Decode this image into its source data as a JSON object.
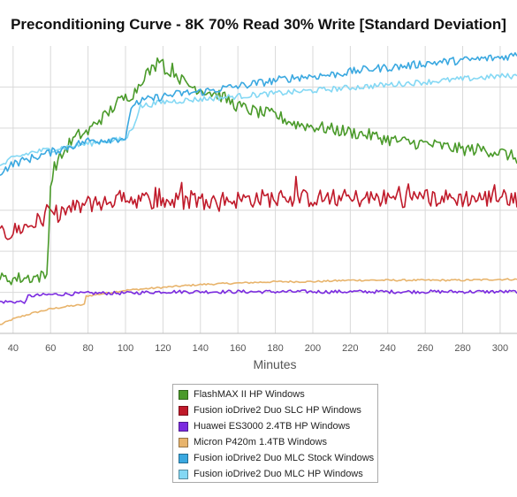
{
  "chart_data": {
    "type": "line",
    "title": "Preconditioning Curve - 8K 70% Read 30% Write [Standard Deviation]",
    "xlabel": "Minutes",
    "ylabel": "",
    "x_ticks": [
      40,
      60,
      80,
      100,
      120,
      140,
      160,
      180,
      200,
      220,
      240,
      260,
      280,
      300
    ],
    "xlim": [
      33,
      309
    ],
    "ylim": [
      0,
      100
    ],
    "grid": true,
    "legend_position": "bottom-center",
    "series": [
      {
        "name": "FlashMAX II HP Windows",
        "color": "#4a9a2a",
        "points": [
          [
            33,
            19
          ],
          [
            40,
            19
          ],
          [
            50,
            19.5
          ],
          [
            58,
            20
          ],
          [
            60,
            51
          ],
          [
            62,
            58
          ],
          [
            65,
            61
          ],
          [
            70,
            66
          ],
          [
            75,
            69
          ],
          [
            80,
            70
          ],
          [
            85,
            74
          ],
          [
            90,
            76
          ],
          [
            95,
            80
          ],
          [
            100,
            82
          ],
          [
            105,
            84
          ],
          [
            110,
            90
          ],
          [
            115,
            92
          ],
          [
            119,
            97
          ],
          [
            122,
            90
          ],
          [
            125,
            92
          ],
          [
            130,
            88
          ],
          [
            135,
            86
          ],
          [
            140,
            85
          ],
          [
            150,
            83
          ],
          [
            160,
            79
          ],
          [
            170,
            77
          ],
          [
            180,
            76
          ],
          [
            190,
            73
          ],
          [
            200,
            72
          ],
          [
            210,
            71
          ],
          [
            220,
            70
          ],
          [
            230,
            69
          ],
          [
            240,
            67.5
          ],
          [
            250,
            66.5
          ],
          [
            260,
            66
          ],
          [
            270,
            65
          ],
          [
            280,
            64
          ],
          [
            290,
            64
          ],
          [
            300,
            63
          ],
          [
            309,
            61
          ]
        ]
      },
      {
        "name": "Fusion ioDrive2 Duo SLC HP Windows",
        "color": "#c01a2a",
        "points": [
          [
            33,
            34
          ],
          [
            40,
            35.5
          ],
          [
            50,
            38
          ],
          [
            60,
            41
          ],
          [
            70,
            43
          ],
          [
            80,
            45
          ],
          [
            90,
            46
          ],
          [
            100,
            47
          ],
          [
            110,
            46.5
          ],
          [
            120,
            46
          ],
          [
            130,
            46
          ],
          [
            140,
            46
          ],
          [
            150,
            46.5
          ],
          [
            160,
            46.5
          ],
          [
            170,
            47
          ],
          [
            180,
            47
          ],
          [
            190,
            47
          ],
          [
            200,
            47
          ],
          [
            210,
            47
          ],
          [
            220,
            47
          ],
          [
            230,
            47
          ],
          [
            240,
            47
          ],
          [
            250,
            47
          ],
          [
            260,
            47
          ],
          [
            270,
            47
          ],
          [
            280,
            47
          ],
          [
            290,
            47
          ],
          [
            300,
            47
          ],
          [
            309,
            47
          ]
        ]
      },
      {
        "name": "Huawei ES3000 2.4TB HP Windows",
        "color": "#7b2be0",
        "points": [
          [
            33,
            11
          ],
          [
            40,
            11
          ],
          [
            47,
            11
          ],
          [
            48,
            13
          ],
          [
            60,
            13.5
          ],
          [
            80,
            14
          ],
          [
            100,
            14
          ],
          [
            120,
            14.5
          ],
          [
            140,
            14.5
          ],
          [
            160,
            14.5
          ],
          [
            180,
            14.5
          ],
          [
            200,
            14.5
          ],
          [
            220,
            14.5
          ],
          [
            240,
            14.5
          ],
          [
            260,
            14.5
          ],
          [
            280,
            14.5
          ],
          [
            300,
            14.5
          ],
          [
            309,
            14.5
          ]
        ]
      },
      {
        "name": "Micron P420m 1.4TB Windows",
        "color": "#e8b46c",
        "points": [
          [
            33,
            3
          ],
          [
            40,
            5
          ],
          [
            50,
            7
          ],
          [
            60,
            8.5
          ],
          [
            70,
            9.5
          ],
          [
            78,
            10
          ],
          [
            79,
            13
          ],
          [
            90,
            14
          ],
          [
            100,
            15
          ],
          [
            120,
            16
          ],
          [
            140,
            17
          ],
          [
            160,
            17.5
          ],
          [
            180,
            18
          ],
          [
            200,
            18
          ],
          [
            220,
            18.5
          ],
          [
            240,
            18.5
          ],
          [
            260,
            18.5
          ],
          [
            280,
            18.5
          ],
          [
            300,
            18.8
          ],
          [
            309,
            18.8
          ]
        ]
      },
      {
        "name": "Fusion ioDrive2 Duo MLC Stock Windows",
        "color": "#3aa8e0",
        "points": [
          [
            33,
            56
          ],
          [
            40,
            59
          ],
          [
            50,
            61
          ],
          [
            60,
            63
          ],
          [
            70,
            65
          ],
          [
            80,
            67
          ],
          [
            90,
            67.5
          ],
          [
            100,
            68
          ],
          [
            104,
            80
          ],
          [
            110,
            81
          ],
          [
            120,
            82.5
          ],
          [
            130,
            83.5
          ],
          [
            140,
            84
          ],
          [
            150,
            85
          ],
          [
            160,
            86
          ],
          [
            170,
            87
          ],
          [
            180,
            88
          ],
          [
            190,
            89
          ],
          [
            200,
            89.5
          ],
          [
            210,
            90
          ],
          [
            220,
            91
          ],
          [
            230,
            92
          ],
          [
            240,
            92.5
          ],
          [
            250,
            93
          ],
          [
            260,
            94
          ],
          [
            270,
            94.5
          ],
          [
            280,
            95
          ],
          [
            290,
            95.5
          ],
          [
            300,
            96
          ],
          [
            309,
            97
          ]
        ]
      },
      {
        "name": "Fusion ioDrive2 Duo MLC HP Windows",
        "color": "#84d8f4",
        "points": [
          [
            33,
            58
          ],
          [
            40,
            61
          ],
          [
            50,
            63
          ],
          [
            60,
            64
          ],
          [
            70,
            65
          ],
          [
            80,
            66
          ],
          [
            90,
            67
          ],
          [
            100,
            67.5
          ],
          [
            104,
            72
          ],
          [
            108,
            79
          ],
          [
            120,
            80.5
          ],
          [
            130,
            81
          ],
          [
            140,
            81.5
          ],
          [
            150,
            82
          ],
          [
            160,
            82.5
          ],
          [
            170,
            83
          ],
          [
            180,
            83.5
          ],
          [
            190,
            84
          ],
          [
            200,
            84.5
          ],
          [
            210,
            85
          ],
          [
            220,
            85.5
          ],
          [
            230,
            86
          ],
          [
            240,
            86.5
          ],
          [
            250,
            87
          ],
          [
            260,
            87.5
          ],
          [
            270,
            88
          ],
          [
            280,
            88.5
          ],
          [
            290,
            89
          ],
          [
            300,
            89.5
          ],
          [
            309,
            89.5
          ]
        ]
      }
    ]
  }
}
